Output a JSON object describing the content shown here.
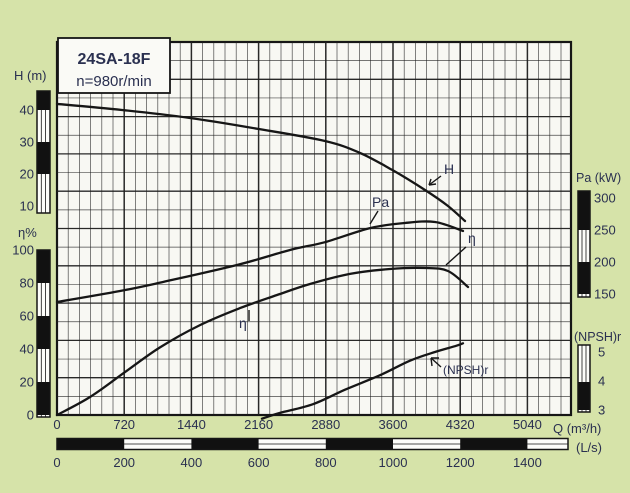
{
  "title_box": {
    "line1": "24SA-18F",
    "line2": "n=980r/min"
  },
  "axis_labels": {
    "head": "H (m)",
    "efficiency": "η%",
    "power": "Pa (kW)",
    "npsh": "(NPSH)r",
    "flow_m3h": "Q (m³/h)",
    "flow_ls": "(L/s)"
  },
  "axis_ticks": {
    "head": [
      40,
      30,
      20,
      10
    ],
    "efficiency": [
      100,
      80,
      60,
      40,
      20,
      0
    ],
    "power": [
      300,
      250,
      200,
      150
    ],
    "npsh": [
      5,
      4,
      3
    ],
    "flow_m3h": [
      0,
      720,
      1440,
      2160,
      2880,
      3600,
      4320,
      5040
    ],
    "flow_ls": [
      0,
      200,
      400,
      600,
      800,
      1000,
      1200,
      1400
    ]
  },
  "curve_labels": {
    "head": "H",
    "power": "Pa",
    "efficiency_mid": "η",
    "efficiency_end": "η",
    "npsh": "(NPSH)r"
  },
  "colors": {
    "background": "#d6e3a9",
    "plot_fill": "#f8f8f3",
    "ink": "#161616",
    "label_ink": "#2a3050"
  },
  "chart_data": {
    "type": "line",
    "title": "24SA-18F pump performance curves, n=980 r/min",
    "x_axis": {
      "label": "Q",
      "units": [
        "m³/h",
        "L/s"
      ],
      "range_m3h": [
        0,
        5500
      ],
      "ticks_m3h": [
        0,
        720,
        1440,
        2160,
        2880,
        3600,
        4320,
        5040
      ],
      "ticks_ls": [
        0,
        200,
        400,
        600,
        800,
        1000,
        1200,
        1400
      ]
    },
    "grid": true,
    "legend_position": "labels-on-curves",
    "series": [
      {
        "id": "H",
        "name": "Head H",
        "unit": "m",
        "axis_tick_range": [
          10,
          40
        ],
        "points": [
          {
            "q": 0,
            "v": 41.9
          },
          {
            "q": 696,
            "v": 40.0
          },
          {
            "q": 1425,
            "v": 37.5
          },
          {
            "q": 2154,
            "v": 34.1
          },
          {
            "q": 2871,
            "v": 30.3
          },
          {
            "q": 3246,
            "v": 26.6
          },
          {
            "q": 3589,
            "v": 21.3
          },
          {
            "q": 3943,
            "v": 15.0
          },
          {
            "q": 4189,
            "v": 10.0
          },
          {
            "q": 4371,
            "v": 5.3
          }
        ]
      },
      {
        "id": "Pa",
        "name": "Shaft power Pa",
        "unit": "kW",
        "axis_tick_range": [
          150,
          300
        ],
        "points": [
          {
            "q": 0,
            "v": 137.5
          },
          {
            "q": 675,
            "v": 154.7
          },
          {
            "q": 1136,
            "v": 168.8
          },
          {
            "q": 1929,
            "v": 195.3
          },
          {
            "q": 2496,
            "v": 218.8
          },
          {
            "q": 2871,
            "v": 231.0
          },
          {
            "q": 3354,
            "v": 253.0
          },
          {
            "q": 3729,
            "v": 261.0
          },
          {
            "q": 4050,
            "v": 262.5
          },
          {
            "q": 4350,
            "v": 248.4
          }
        ]
      },
      {
        "id": "eta",
        "name": "Efficiency η",
        "unit": "%",
        "axis_tick_range": [
          0,
          100
        ],
        "points": [
          {
            "q": 0,
            "v": 0
          },
          {
            "q": 354,
            "v": 10.9
          },
          {
            "q": 729,
            "v": 26.0
          },
          {
            "q": 1104,
            "v": 41.0
          },
          {
            "q": 1532,
            "v": 54.5
          },
          {
            "q": 1961,
            "v": 64.8
          },
          {
            "q": 2357,
            "v": 72.7
          },
          {
            "q": 2711,
            "v": 79.4
          },
          {
            "q": 3139,
            "v": 85.5
          },
          {
            "q": 3568,
            "v": 88.5
          },
          {
            "q": 3943,
            "v": 89.1
          },
          {
            "q": 4189,
            "v": 87.3
          },
          {
            "q": 4404,
            "v": 77.6
          }
        ]
      },
      {
        "id": "npsh",
        "name": "(NPSH)r",
        "unit": "m",
        "axis_tick_range": [
          3,
          5
        ],
        "points": [
          {
            "q": 2196,
            "v": 2.7
          },
          {
            "q": 2389,
            "v": 2.9
          },
          {
            "q": 2743,
            "v": 3.2
          },
          {
            "q": 3086,
            "v": 3.7
          },
          {
            "q": 3461,
            "v": 4.2
          },
          {
            "q": 3782,
            "v": 4.7
          },
          {
            "q": 4050,
            "v": 5.0
          },
          {
            "q": 4264,
            "v": 5.2
          },
          {
            "q": 4350,
            "v": 5.3
          }
        ]
      }
    ]
  }
}
